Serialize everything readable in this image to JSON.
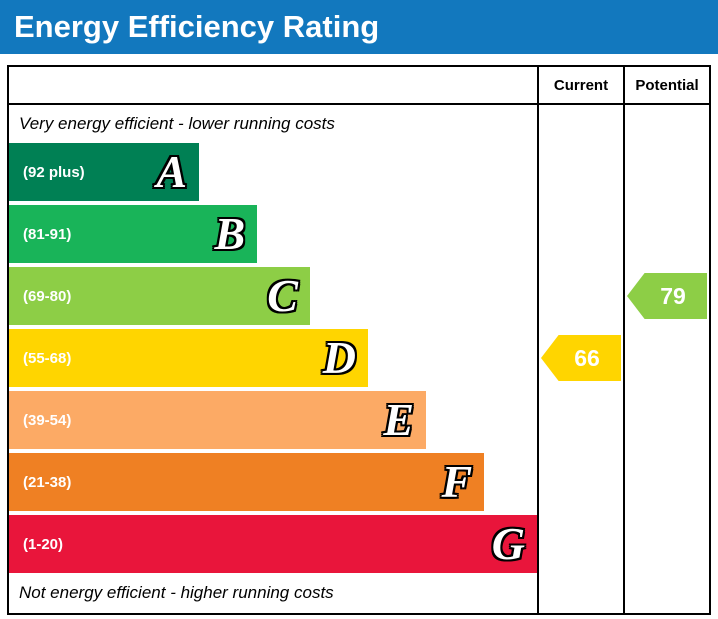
{
  "title": "Energy Efficiency Rating",
  "columns": {
    "current": "Current",
    "potential": "Potential"
  },
  "notes": {
    "top": "Very energy efficient - lower running costs",
    "bottom": "Not energy efficient - higher running costs"
  },
  "bands": [
    {
      "letter": "A",
      "range": "(92 plus)",
      "color": "#008054",
      "width_pct": 36
    },
    {
      "letter": "B",
      "range": "(81-91)",
      "color": "#19b459",
      "width_pct": 47
    },
    {
      "letter": "C",
      "range": "(69-80)",
      "color": "#8dce46",
      "width_pct": 57
    },
    {
      "letter": "D",
      "range": "(55-68)",
      "color": "#ffd500",
      "width_pct": 68
    },
    {
      "letter": "E",
      "range": "(39-54)",
      "color": "#fcaa65",
      "width_pct": 79
    },
    {
      "letter": "F",
      "range": "(21-38)",
      "color": "#ef8023",
      "width_pct": 90
    },
    {
      "letter": "G",
      "range": "(1-20)",
      "color": "#e9153b",
      "width_pct": 100
    }
  ],
  "current": {
    "value": "66",
    "band": "D",
    "color": "#ffd500"
  },
  "potential": {
    "value": "79",
    "band": "C",
    "color": "#8dce46"
  },
  "colors": {
    "title_bar": "#1278be",
    "border": "#000000"
  },
  "chart_data": {
    "type": "bar",
    "title": "Energy Efficiency Rating",
    "categories": [
      "A",
      "B",
      "C",
      "D",
      "E",
      "F",
      "G"
    ],
    "band_ranges": [
      "92 plus",
      "81-91",
      "69-80",
      "55-68",
      "39-54",
      "21-38",
      "1-20"
    ],
    "band_colors": [
      "#008054",
      "#19b459",
      "#8dce46",
      "#ffd500",
      "#fcaa65",
      "#ef8023",
      "#e9153b"
    ],
    "bar_width_pct": [
      36,
      47,
      57,
      68,
      79,
      90,
      100
    ],
    "series": [
      {
        "name": "Current",
        "value": 66,
        "band": "D"
      },
      {
        "name": "Potential",
        "value": 79,
        "band": "C"
      }
    ],
    "annotations": [
      "Very energy efficient - lower running costs",
      "Not energy efficient - higher running costs"
    ],
    "legend_position": "none",
    "grid": false
  }
}
